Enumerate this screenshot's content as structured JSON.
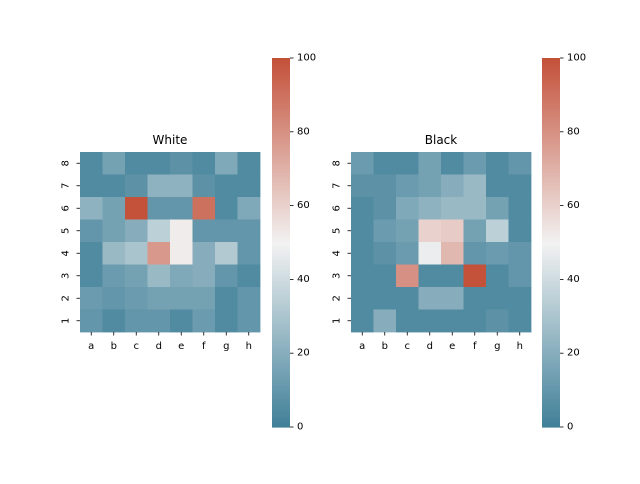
{
  "chart_data": [
    {
      "type": "heatmap",
      "title": "White",
      "x_categories": [
        "a",
        "b",
        "c",
        "d",
        "e",
        "f",
        "g",
        "h"
      ],
      "y_categories": [
        "8",
        "7",
        "6",
        "5",
        "4",
        "3",
        "2",
        "1"
      ],
      "values": [
        [
          5,
          15,
          5,
          5,
          8,
          5,
          18,
          5
        ],
        [
          5,
          5,
          8,
          22,
          22,
          8,
          5,
          5
        ],
        [
          22,
          15,
          100,
          10,
          10,
          90,
          5,
          18
        ],
        [
          10,
          15,
          20,
          35,
          52,
          10,
          10,
          10
        ],
        [
          5,
          25,
          30,
          78,
          52,
          20,
          32,
          10
        ],
        [
          5,
          12,
          15,
          25,
          18,
          20,
          10,
          5
        ],
        [
          12,
          10,
          12,
          15,
          15,
          15,
          5,
          10
        ],
        [
          10,
          5,
          10,
          10,
          5,
          12,
          5,
          10
        ]
      ],
      "colorbar": {
        "min": 0,
        "max": 100,
        "ticks": [
          0,
          20,
          40,
          60,
          80,
          100
        ]
      }
    },
    {
      "type": "heatmap",
      "title": "Black",
      "x_categories": [
        "a",
        "b",
        "c",
        "d",
        "e",
        "f",
        "g",
        "h"
      ],
      "y_categories": [
        "8",
        "7",
        "6",
        "5",
        "4",
        "3",
        "2",
        "1"
      ],
      "values": [
        [
          12,
          5,
          5,
          15,
          5,
          12,
          5,
          10
        ],
        [
          8,
          8,
          12,
          15,
          20,
          25,
          5,
          5
        ],
        [
          5,
          8,
          18,
          22,
          25,
          25,
          15,
          5
        ],
        [
          5,
          12,
          15,
          60,
          62,
          15,
          35,
          5
        ],
        [
          5,
          8,
          12,
          48,
          68,
          10,
          12,
          10
        ],
        [
          5,
          5,
          80,
          5,
          5,
          100,
          5,
          10
        ],
        [
          5,
          5,
          5,
          20,
          20,
          5,
          5,
          5
        ],
        [
          5,
          20,
          5,
          5,
          5,
          5,
          8,
          5
        ]
      ],
      "colorbar": {
        "min": 0,
        "max": 100,
        "ticks": [
          0,
          20,
          40,
          60,
          80,
          100
        ]
      }
    }
  ],
  "colors": {
    "low": "#3f7f98",
    "mid": "#f2f2f2",
    "high": "#c4513a"
  }
}
